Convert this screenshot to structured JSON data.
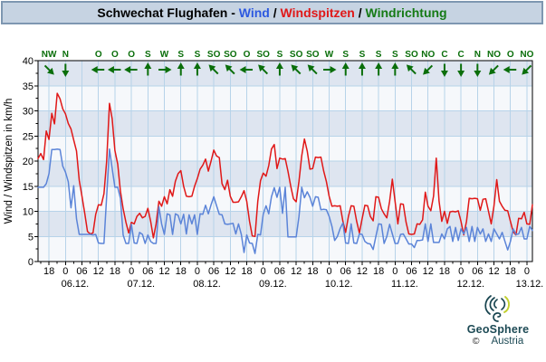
{
  "header": {
    "title_prefix": "Schwechat Flughafen - ",
    "separator": " / ",
    "series_labels": [
      {
        "label": "Wind",
        "color": "#2d59e0"
      },
      {
        "label": "Windspitzen",
        "color": "#e01818"
      },
      {
        "label": "Windrichtung",
        "color": "#157a15"
      }
    ]
  },
  "chart_data": {
    "type": "line",
    "title": "Schwechat Flughafen - Wind / Windspitzen / Windrichtung",
    "ylabel": "Wind / Windspitzen in km/h",
    "xlabel": "",
    "ylim": [
      0,
      40
    ],
    "y_ticks": [
      0,
      5,
      10,
      15,
      20,
      25,
      30,
      35,
      40
    ],
    "grid": true,
    "band_color": "#dee5f0",
    "plot_bg_color": "#f6f8fb",
    "grid_color": "#b7d3e9",
    "direction_color": "#0a6e0a",
    "x_tick_labels": [
      "18",
      "0",
      "06",
      "12",
      "18",
      "0",
      "06",
      "12",
      "18",
      "0",
      "06",
      "12",
      "18",
      "0",
      "06",
      "12",
      "18",
      "0",
      "06",
      "12",
      "18",
      "0",
      "06",
      "12",
      "18",
      "0",
      "06",
      "12",
      "18",
      "0"
    ],
    "date_labels": [
      "06.12.",
      "07.12.",
      "08.12.",
      "09.12.",
      "10.12.",
      "11.12.",
      "12.12.",
      "13.12."
    ],
    "wind_directions": [
      "NW",
      "N",
      "",
      "O",
      "O",
      "O",
      "S",
      "W",
      "S",
      "S",
      "SO",
      "SO",
      "O",
      "SO",
      "S",
      "SO",
      "SO",
      "W",
      "S",
      "S",
      "S",
      "S",
      "SO",
      "NO",
      "C",
      "C",
      "N",
      "NO",
      "O",
      "NO"
    ],
    "direction_angles": {
      "N": 180,
      "NO": 225,
      "O": 270,
      "SO": 315,
      "S": 0,
      "SW": 45,
      "W": 90,
      "NW": 135,
      "C": 180
    },
    "series": [
      {
        "name": "Wind",
        "color": "#5b84d8",
        "values": [
          14.8,
          14.8,
          14.8,
          15.5,
          17.5,
          22.3,
          22.3,
          22.4,
          22.3,
          19.0,
          17.8,
          15.9,
          10.7,
          15.1,
          8.5,
          5.4,
          5.4,
          5.4,
          5.4,
          5.4,
          5.3,
          5.4,
          3.7,
          3.6,
          3.6,
          13.0,
          22.4,
          18.5,
          14.8,
          14.8,
          12.6,
          5.3,
          3.6,
          3.6,
          7.4,
          3.7,
          3.6,
          5.8,
          5.4,
          3.6,
          5.3,
          4.0,
          3.6,
          3.6,
          10.9,
          7.5,
          5.4,
          9.5,
          9.3,
          5.4,
          9.5,
          9.2,
          7.5,
          9.4,
          5.5,
          9.3,
          7.5,
          9.3,
          5.4,
          9.5,
          9.4,
          11.2,
          9.5,
          11.3,
          12.9,
          11.1,
          9.4,
          9.3,
          7.5,
          7.4,
          7.5,
          7.6,
          5.5,
          7.5,
          5.4,
          1.8,
          5.3,
          3.7,
          3.6,
          1.6,
          5.4,
          5.3,
          9.4,
          11.1,
          9.5,
          12.9,
          14.7,
          12.8,
          14.8,
          9.6,
          14.8,
          4.9,
          4.9,
          4.9,
          4.9,
          9.0,
          14.8,
          12.7,
          13.9,
          12.8,
          11.0,
          12.9,
          12.8,
          10.3,
          10.4,
          10.3,
          9.0,
          7.0,
          4.2,
          5.0,
          6.6,
          7.7,
          3.7,
          3.6,
          7.5,
          3.7,
          3.6,
          5.5,
          5.4,
          4.0,
          3.6,
          3.5,
          2.4,
          5.0,
          7.5,
          7.4,
          3.6,
          5.0,
          7.4,
          5.5,
          3.6,
          3.6,
          5.4,
          5.5,
          4.5,
          3.5,
          3.5,
          2.8,
          4.2,
          4.2,
          4.3,
          7.5,
          4.0,
          7.5,
          3.8,
          3.8,
          3.8,
          5.5,
          4.5,
          6.5,
          7.0,
          4.0,
          6.8,
          4.2,
          6.5,
          5.5,
          6.8,
          4.0,
          7.0,
          4.0,
          6.8,
          5.5,
          6.5,
          4.0,
          5.5,
          4.0,
          6.5,
          5.5,
          4.5,
          5.8,
          4.0,
          2.3,
          4.0,
          6.5,
          5.4,
          5.5,
          6.8,
          4.5,
          4.5,
          7.0,
          6.2
        ]
      },
      {
        "name": "Windspitzen",
        "color": "#e01818",
        "values": [
          20.5,
          21.5,
          20.3,
          26.0,
          24.3,
          29.5,
          27.4,
          33.5,
          32.4,
          30.4,
          29.4,
          27.5,
          26.4,
          24.2,
          22.0,
          16.2,
          13.0,
          9.6,
          6.0,
          5.5,
          5.7,
          9.4,
          11.3,
          11.2,
          13.5,
          20.0,
          31.5,
          28.4,
          22.1,
          19.4,
          14.0,
          10.5,
          7.8,
          5.7,
          7.8,
          7.5,
          9.0,
          9.6,
          8.7,
          9.0,
          10.6,
          8.0,
          4.7,
          7.5,
          12.0,
          11.0,
          12.9,
          11.5,
          14.3,
          13.0,
          16.0,
          17.5,
          18.1,
          15.0,
          13.0,
          12.9,
          13.0,
          15.0,
          16.5,
          18.4,
          19.2,
          20.4,
          18.0,
          20.0,
          22.2,
          21.0,
          20.7,
          15.5,
          14.3,
          16.2,
          13.0,
          11.8,
          11.8,
          11.9,
          12.9,
          14.1,
          12.0,
          8.0,
          5.1,
          5.0,
          12.0,
          16.1,
          17.6,
          17.0,
          19.1,
          22.4,
          23.3,
          18.5,
          20.6,
          20.4,
          20.5,
          18.0,
          15.0,
          12.5,
          11.9,
          16.0,
          21.0,
          24.4,
          22.0,
          18.4,
          18.5,
          20.8,
          20.7,
          20.8,
          18.0,
          15.9,
          13.0,
          11.0,
          11.1,
          11.0,
          11.1,
          8.0,
          5.8,
          9.0,
          11.1,
          11.0,
          8.0,
          5.7,
          8.5,
          11.2,
          11.1,
          9.0,
          8.1,
          12.9,
          12.8,
          10.5,
          9.5,
          8.7,
          12.0,
          16.4,
          12.0,
          7.5,
          11.5,
          11.4,
          7.8,
          5.5,
          5.4,
          5.5,
          7.5,
          7.4,
          8.3,
          13.8,
          11.0,
          10.1,
          13.0,
          20.6,
          12.0,
          8.0,
          10.0,
          7.6,
          9.9,
          10.0,
          9.9,
          10.1,
          8.0,
          5.3,
          8.0,
          12.6,
          12.5,
          12.6,
          12.5,
          10.2,
          12.4,
          12.5,
          10.0,
          7.5,
          11.0,
          16.3,
          12.0,
          11.0,
          10.2,
          10.1,
          8.0,
          5.9,
          5.3,
          8.6,
          8.5,
          9.8,
          7.5,
          7.4,
          11.3
        ]
      }
    ]
  },
  "footer": {
    "copyright": "©",
    "brand": "GeoSphere",
    "country": "Austria"
  }
}
